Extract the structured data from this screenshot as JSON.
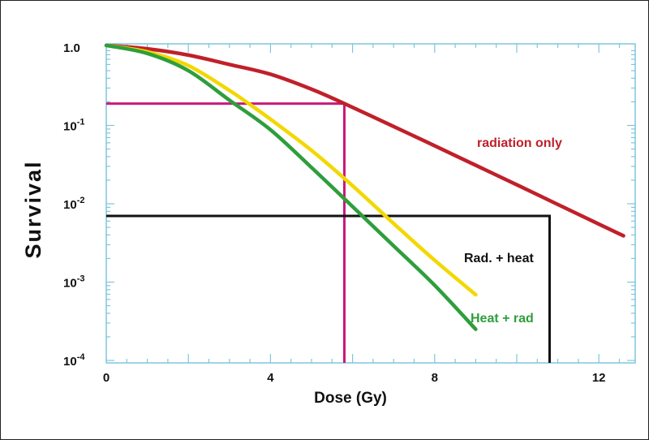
{
  "chart_data": {
    "type": "line",
    "xlabel": "Dose (Gy)",
    "ylabel": "Survival",
    "y_scale": "log",
    "xlim": [
      0,
      13
    ],
    "ylim": [
      0.0001,
      1.2
    ],
    "x_ticks": [
      {
        "value": 0,
        "label": "0"
      },
      {
        "value": 4,
        "label": "4"
      },
      {
        "value": 8,
        "label": "8"
      },
      {
        "value": 12,
        "label": "12"
      }
    ],
    "y_ticks": [
      {
        "value": 1,
        "base": "1.0",
        "exp": ""
      },
      {
        "value": 0.1,
        "base": "10",
        "exp": "-1"
      },
      {
        "value": 0.01,
        "base": "10",
        "exp": "-2"
      },
      {
        "value": 0.001,
        "base": "10",
        "exp": "-3"
      },
      {
        "value": 0.0001,
        "base": "10",
        "exp": "-4"
      }
    ],
    "series": [
      {
        "name": "radiation only",
        "color": "#c0202a",
        "x": [
          0,
          1,
          2,
          3,
          4,
          5,
          5.8,
          7,
          8,
          9,
          10,
          11,
          12,
          12.6
        ],
        "y": [
          1.05,
          0.95,
          0.79,
          0.6,
          0.45,
          0.29,
          0.19,
          0.097,
          0.055,
          0.031,
          0.0175,
          0.0098,
          0.0055,
          0.0039
        ]
      },
      {
        "name": "Rad. + heat",
        "color": "#f2d800",
        "x": [
          0,
          1,
          2,
          3,
          3.5,
          4,
          5,
          6,
          7,
          8,
          9
        ],
        "y": [
          1.05,
          0.87,
          0.58,
          0.28,
          0.185,
          0.12,
          0.048,
          0.017,
          0.0056,
          0.0019,
          0.00069
        ]
      },
      {
        "name": "Heat + rad",
        "color": "#2e9e3c",
        "x": [
          0,
          1,
          2,
          3,
          4,
          5,
          6,
          7,
          8,
          9
        ],
        "y": [
          1.05,
          0.83,
          0.5,
          0.21,
          0.088,
          0.029,
          0.0092,
          0.0029,
          0.00091,
          0.00025
        ]
      }
    ],
    "reference_lines": [
      {
        "color": "#c9187e",
        "x": 5.8,
        "y": 0.19
      },
      {
        "color": "#111111",
        "x": 10.8,
        "y": 0.007
      }
    ],
    "colors": {
      "frame": "#7fc6dd"
    }
  }
}
